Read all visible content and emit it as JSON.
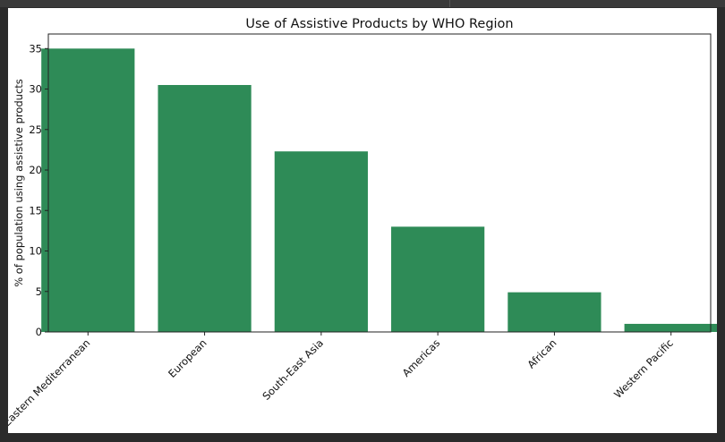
{
  "chart_data": {
    "type": "bar",
    "title": "Use of Assistive Products by WHO Region",
    "xlabel": "",
    "ylabel": "% of population using assistive products",
    "categories": [
      "Eastern Mediterranean",
      "European",
      "South-East Asia",
      "Americas",
      "African",
      "Western Pacific"
    ],
    "values": [
      35.0,
      30.5,
      22.3,
      13.0,
      4.9,
      1.0
    ],
    "ylim": [
      0,
      36.8
    ],
    "yticks": [
      0,
      5,
      10,
      15,
      20,
      25,
      30,
      35
    ],
    "bar_color": "#2e8b57",
    "grid": false,
    "legend": "none"
  }
}
